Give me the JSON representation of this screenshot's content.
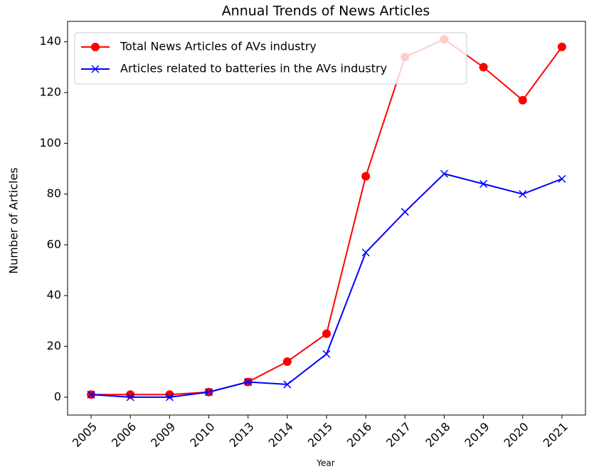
{
  "chart_data": {
    "type": "line",
    "title": "Annual Trends of News Articles",
    "xlabel": "Year",
    "ylabel": "Number of Articles",
    "categories": [
      "2005",
      "2006",
      "2009",
      "2010",
      "2013",
      "2014",
      "2015",
      "2016",
      "2017",
      "2018",
      "2019",
      "2020",
      "2021"
    ],
    "series": [
      {
        "name": "Total News Articles of AVs industry",
        "color": "#ff0000",
        "marker": "circle",
        "values": [
          1,
          1,
          1,
          2,
          6,
          14,
          25,
          87,
          134,
          141,
          130,
          117,
          138
        ]
      },
      {
        "name": "Articles related to batteries in the AVs industry",
        "color": "#0000ff",
        "marker": "x",
        "values": [
          1,
          0,
          0,
          2,
          6,
          5,
          17,
          57,
          73,
          88,
          84,
          80,
          86
        ]
      }
    ],
    "ylim": [
      -7.05,
      148.05
    ],
    "yticks": [
      0,
      20,
      40,
      60,
      80,
      100,
      120,
      140
    ],
    "grid": false,
    "legend": "upper left"
  }
}
